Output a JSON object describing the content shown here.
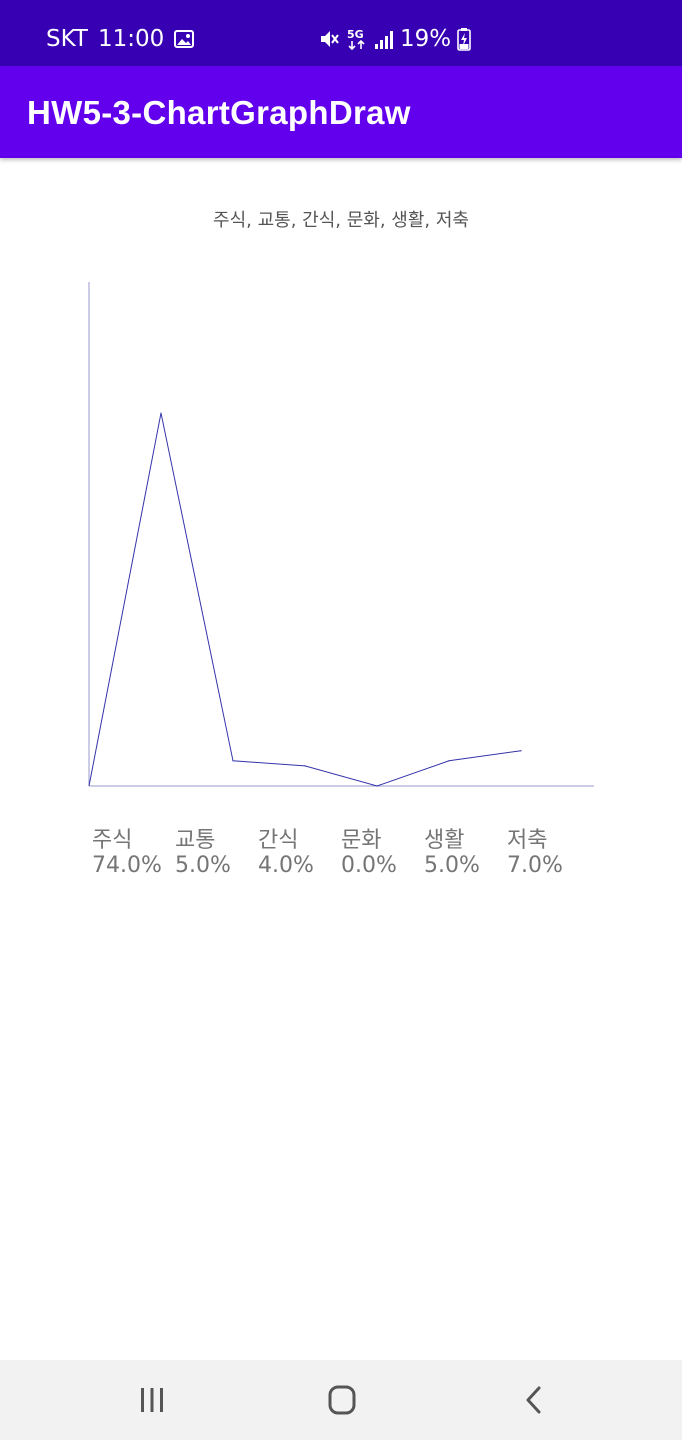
{
  "status_bar": {
    "carrier": "SKT",
    "time": "11:00",
    "battery": "19%",
    "icons": [
      "gallery-icon",
      "mute-icon",
      "5g-icon",
      "signal-icon",
      "battery-charging-icon"
    ]
  },
  "app_bar": {
    "title": "HW5-3-ChartGraphDraw"
  },
  "chart_data": {
    "type": "line",
    "title": "주식, 교통, 간식, 문화, 생활, 저축",
    "categories": [
      "주식",
      "교통",
      "간식",
      "문화",
      "생활",
      "저축"
    ],
    "value_labels": [
      "74.0%",
      "5.0%",
      "4.0%",
      "0.0%",
      "5.0%",
      "7.0%"
    ],
    "values": [
      74,
      5,
      4,
      0,
      5,
      7
    ],
    "ylim": [
      0,
      100
    ],
    "line_color": "#3333aa",
    "axis_color": "#9999cc",
    "grid": false
  },
  "nav_bar": {
    "icons": [
      "recent-apps-icon",
      "home-icon",
      "back-icon"
    ]
  }
}
